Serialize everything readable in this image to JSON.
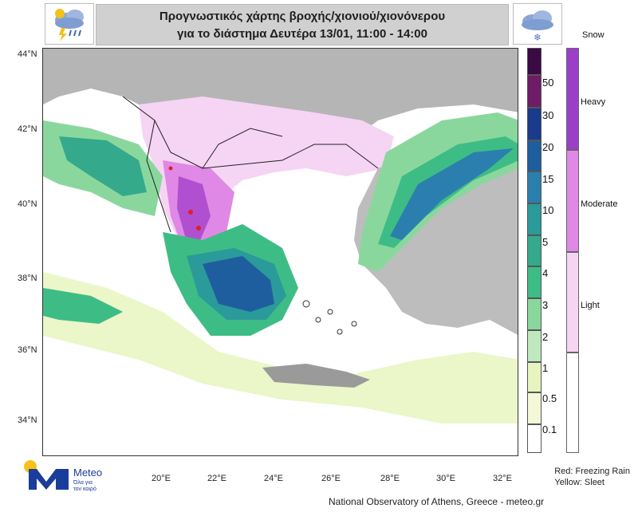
{
  "header": {
    "title_line1": "Προγνωστικός χάρτης βροχής/χιονιού/χιονόνερου",
    "title_line2": "για το διάστημα Δευτέρα 13/01, 11:00 - 14:00"
  },
  "icons": {
    "left": "rain-snow-lightning-icon",
    "right": "cloud-snow-icon"
  },
  "axes": {
    "y_labels": [
      "44°N",
      "42°N",
      "40°N",
      "38°N",
      "36°N",
      "34°N"
    ],
    "x_labels": [
      "20°E",
      "22°E",
      "24°E",
      "26°E",
      "28°E",
      "30°E",
      "32°E"
    ]
  },
  "scale": {
    "labels": [
      "50",
      "30",
      "20",
      "15",
      "10",
      "5",
      "4",
      "3",
      "2",
      "1",
      "0.5",
      "0.1"
    ],
    "colors": [
      "#3b0a45",
      "#6e1c68",
      "#1a3a8c",
      "#1f5e9e",
      "#2b7fae",
      "#2b9a9a",
      "#34a98c",
      "#3dbd85",
      "#8ad79d",
      "#c0e8bf",
      "#e8f4c0",
      "#f4f8d8",
      "#ffffff"
    ]
  },
  "snow_scale": {
    "title": "Snow",
    "labels": [
      "Heavy",
      "Moderate",
      "Light"
    ],
    "colors": [
      "#9b3fc8",
      "#e088e6",
      "#f6d4f4",
      "#ffffff"
    ]
  },
  "legend_notes": {
    "red": "Red: Freezing Rain",
    "yellow": "Yellow: Sleet"
  },
  "logo": {
    "name": "Meteo",
    "tagline1": "Όλα για",
    "tagline2": "τον καιρό"
  },
  "credit": "National Observatory of Athens, Greece - meteo.gr"
}
